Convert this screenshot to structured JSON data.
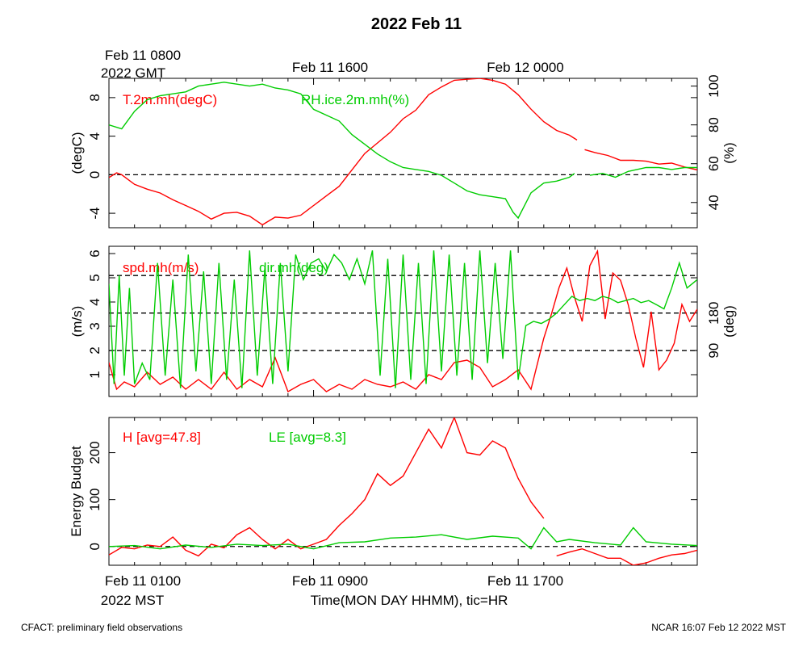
{
  "title": "2022 Feb 11",
  "footer": {
    "left": "CFACT: preliminary field observations",
    "right": "NCAR 16:07 Feb 12 2022 MST"
  },
  "top_axis": {
    "first_label_line1": "Feb 11 0800",
    "first_label_line2": "2022 GMT",
    "labels": [
      "Feb 11 1600",
      "Feb 12 0000"
    ]
  },
  "bottom_axis": {
    "first_label_line1": "Feb 11 0100",
    "first_label_line2": "2022 MST",
    "labels": [
      "Feb 11 0900",
      "Feb 11 1700"
    ],
    "xlabel": "Time(MON DAY HHMM), tic=HR"
  },
  "colors": {
    "red": "#ff0000",
    "green": "#00cc00",
    "black": "#000000"
  },
  "chart_data": [
    {
      "type": "line",
      "panel": "temperature-humidity",
      "x_unit": "hours since Feb 11 0100 MST",
      "xlim": [
        0,
        23
      ],
      "ylabel_left": "(degC)",
      "ylabel_right": "(%)",
      "ylim_left": [
        -5.5,
        10
      ],
      "ylim_right": [
        27,
        104
      ],
      "yticks_left": [
        "-4",
        "0",
        "4",
        "8"
      ],
      "yticks_right": [
        "40",
        "60",
        "80",
        "100"
      ],
      "reference_lines_left": [
        0
      ],
      "series": [
        {
          "name": "T.2m.mh(degC)",
          "axis": "left",
          "color": "#ff0000",
          "x": [
            0,
            0.3,
            0.5,
            1,
            1.5,
            2,
            2.5,
            3,
            3.5,
            4,
            4.5,
            5,
            5.5,
            6,
            6.5,
            7,
            7.5,
            8,
            8.5,
            9,
            9.5,
            10,
            10.5,
            11,
            11.5,
            12,
            12.5,
            13,
            13.5,
            14,
            14.5,
            15,
            15.5,
            16,
            16.5,
            17,
            17.5,
            18,
            18.3,
            null,
            18.6,
            19,
            19.5,
            20,
            20.5,
            21,
            21.5,
            22,
            22.5,
            23
          ],
          "y": [
            -0.3,
            0.2,
            0,
            -1,
            -1.5,
            -1.9,
            -2.6,
            -3.2,
            -3.8,
            -4.6,
            -4,
            -3.9,
            -4.3,
            -5.2,
            -4.4,
            -4.5,
            -4.2,
            -3.2,
            -2.2,
            -1.2,
            0.5,
            2.2,
            3.3,
            4.4,
            5.8,
            6.7,
            8.3,
            9.1,
            9.8,
            9.9,
            10,
            9.8,
            9.4,
            8.3,
            6.8,
            5.5,
            4.6,
            4.1,
            3.6,
            null,
            2.6,
            2.3,
            2,
            1.5,
            1.5,
            1.4,
            1.1,
            1.2,
            0.8,
            0.5
          ]
        },
        {
          "name": "RH.ice.2m.mh(%)",
          "axis": "right",
          "color": "#00cc00",
          "x": [
            0,
            0.5,
            1,
            1.5,
            2,
            2.5,
            3,
            3.5,
            4,
            4.5,
            5,
            5.5,
            6,
            6.5,
            7,
            7.5,
            8,
            8.5,
            9,
            9.5,
            10,
            10.5,
            11,
            11.5,
            12,
            12.5,
            13,
            13.5,
            14,
            14.5,
            15,
            15.5,
            15.8,
            16,
            16.5,
            17,
            17.5,
            18,
            18.2,
            null,
            18.8,
            19.3,
            19.8,
            20.3,
            21,
            21.5,
            22,
            22.5,
            23
          ],
          "y": [
            80,
            78,
            87,
            93,
            95,
            96,
            97,
            100,
            101,
            102,
            101,
            100,
            101,
            99,
            98,
            96,
            88,
            85,
            82,
            75,
            70,
            65,
            61,
            58,
            57,
            56,
            54,
            50,
            46,
            44,
            43,
            42,
            35,
            32,
            45,
            50,
            51,
            53,
            55,
            null,
            54,
            55,
            53,
            56,
            58,
            58,
            57,
            58,
            58
          ]
        }
      ]
    },
    {
      "type": "line",
      "panel": "wind",
      "x_unit": "hours since Feb 11 0100 MST",
      "xlim": [
        0,
        23
      ],
      "ylabel_left": "(m/s)",
      "ylabel_right": "(deg)",
      "ylim_left": [
        0.1,
        6.3
      ],
      "ylim_right": [
        -20,
        340
      ],
      "yticks_left": [
        "1",
        "2",
        "3",
        "4",
        "5",
        "6"
      ],
      "yticks_right": [
        "90",
        "180"
      ],
      "reference_lines_right": [
        90,
        180,
        270
      ],
      "series": [
        {
          "name": "spd.mh(m/s)",
          "axis": "left",
          "color": "#ff0000",
          "x": [
            0,
            0.3,
            0.6,
            1,
            1.5,
            2,
            2.5,
            3,
            3.5,
            4,
            4.5,
            5,
            5.5,
            6,
            6.5,
            7,
            7.5,
            8,
            8.5,
            9,
            9.5,
            10,
            10.5,
            11,
            11.5,
            12,
            12.5,
            13,
            13.5,
            14,
            14.5,
            15,
            15.5,
            16,
            16.5,
            17,
            17.3,
            17.6,
            17.9,
            18.2,
            18.5,
            18.8,
            19.1,
            19.4,
            19.7,
            20,
            20.3,
            20.6,
            20.9,
            21.2,
            21.5,
            21.8,
            22.1,
            22.4,
            22.7,
            23
          ],
          "y": [
            1.5,
            0.4,
            0.7,
            0.5,
            1.1,
            0.6,
            0.9,
            0.4,
            0.8,
            0.4,
            1.1,
            0.4,
            0.8,
            0.5,
            1.7,
            0.3,
            0.6,
            0.8,
            0.3,
            0.6,
            0.4,
            0.8,
            0.6,
            0.5,
            0.7,
            0.4,
            1,
            0.8,
            1.5,
            1.6,
            1.3,
            0.5,
            0.8,
            1.2,
            0.4,
            2.5,
            3.5,
            4.6,
            5.4,
            4.2,
            3.2,
            5.5,
            6.1,
            3.3,
            5.2,
            4.9,
            3.9,
            2.5,
            1.3,
            3.6,
            1.2,
            1.6,
            2.3,
            3.9,
            3.2,
            3.7
          ]
        },
        {
          "name": "dir.mh(deg)",
          "axis": "right",
          "color": "#00cc00",
          "x": [
            0,
            0.2,
            0.4,
            0.6,
            0.8,
            1,
            1.3,
            1.6,
            1.9,
            2.2,
            2.5,
            2.8,
            3.1,
            3.4,
            3.7,
            4,
            4.3,
            4.6,
            4.9,
            5.2,
            5.5,
            5.8,
            6.1,
            6.4,
            6.7,
            7,
            7.3,
            7.6,
            7.9,
            8.2,
            8.5,
            8.8,
            9.1,
            9.4,
            9.7,
            10,
            10.3,
            10.6,
            10.9,
            11.2,
            11.5,
            11.8,
            12.1,
            12.4,
            12.7,
            13,
            13.3,
            13.6,
            13.9,
            14.2,
            14.5,
            14.8,
            15.1,
            15.4,
            15.7,
            16,
            16.3,
            16.6,
            16.9,
            17.2,
            17.5,
            17.8,
            18.1,
            18.4,
            18.7,
            19,
            19.3,
            19.6,
            19.9,
            20.2,
            20.5,
            20.8,
            21.1,
            21.4,
            21.7,
            22,
            22.3,
            22.6,
            23
          ],
          "y": [
            250,
            10,
            270,
            30,
            240,
            10,
            60,
            20,
            300,
            30,
            260,
            0,
            320,
            40,
            280,
            10,
            300,
            20,
            260,
            0,
            330,
            30,
            290,
            10,
            300,
            40,
            320,
            260,
            300,
            310,
            280,
            320,
            300,
            260,
            310,
            250,
            330,
            30,
            310,
            0,
            320,
            20,
            300,
            10,
            330,
            40,
            320,
            30,
            300,
            20,
            330,
            60,
            300,
            70,
            330,
            20,
            150,
            160,
            155,
            165,
            180,
            200,
            220,
            210,
            215,
            210,
            220,
            215,
            205,
            210,
            215,
            205,
            210,
            200,
            190,
            240,
            300,
            240,
            260
          ]
        }
      ]
    },
    {
      "type": "line",
      "panel": "energy-budget",
      "x_unit": "hours since Feb 11 0100 MST",
      "xlim": [
        0,
        23
      ],
      "ylabel_left": "Energy Budget",
      "ylim_left": [
        -40,
        275
      ],
      "yticks_left": [
        "0",
        "100",
        "200"
      ],
      "reference_lines_left": [
        0
      ],
      "series": [
        {
          "name": "H [avg=47.8]",
          "axis": "left",
          "color": "#ff0000",
          "x": [
            0,
            0.5,
            1,
            1.5,
            2,
            2.5,
            3,
            3.5,
            4,
            4.5,
            5,
            5.5,
            6,
            6.5,
            7,
            7.5,
            8,
            8.5,
            9,
            9.5,
            10,
            10.5,
            11,
            11.5,
            12,
            12.5,
            13,
            13.5,
            14,
            14.5,
            15,
            15.5,
            16,
            16.5,
            17,
            null,
            17.5,
            18,
            18.5,
            19,
            19.5,
            20,
            20.5,
            21,
            21.5,
            22,
            22.5,
            23
          ],
          "y": [
            -18,
            -2,
            -5,
            3,
            0,
            20,
            -8,
            -20,
            5,
            -3,
            25,
            40,
            15,
            -5,
            15,
            -5,
            5,
            15,
            45,
            70,
            100,
            155,
            130,
            150,
            200,
            250,
            210,
            275,
            200,
            195,
            225,
            210,
            145,
            95,
            60,
            null,
            -20,
            -12,
            -5,
            -15,
            -25,
            -25,
            -40,
            -35,
            -25,
            -18,
            -15,
            -8
          ]
        },
        {
          "name": "LE [avg=8.3]",
          "axis": "left",
          "color": "#00cc00",
          "x": [
            0,
            1,
            2,
            3,
            4,
            5,
            6,
            7,
            8,
            9,
            10,
            11,
            12,
            13,
            14,
            15,
            16,
            16.5,
            17,
            17.5,
            18,
            19,
            20,
            20.5,
            21,
            22,
            23
          ],
          "y": [
            0,
            2,
            -5,
            3,
            -2,
            5,
            2,
            5,
            -5,
            8,
            10,
            18,
            20,
            25,
            15,
            22,
            18,
            -5,
            40,
            10,
            15,
            8,
            3,
            40,
            10,
            5,
            2
          ]
        }
      ]
    }
  ]
}
